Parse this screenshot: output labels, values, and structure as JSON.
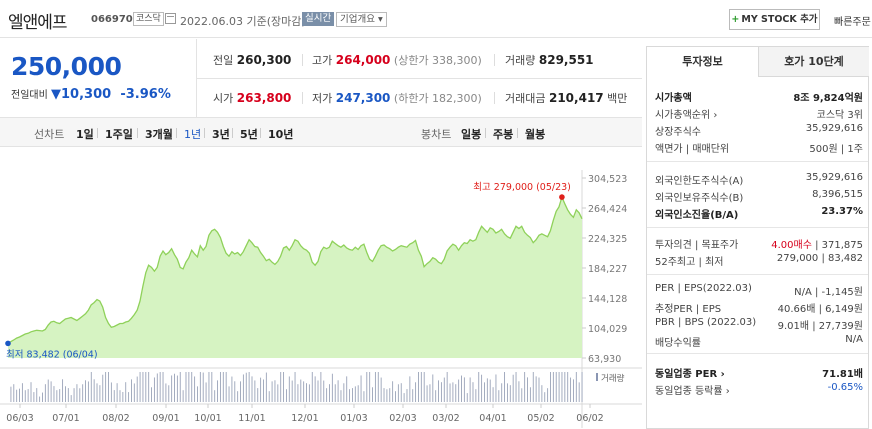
{
  "header": {
    "name": "엘앤에프",
    "code": "066970",
    "market": "코스닥",
    "date": "2022.06.03 기준(장마감)",
    "realtime": "실시간",
    "company_info": "기업개요 ▾",
    "mystock": "MY STOCK 추가",
    "quick_order": "빠른주문"
  },
  "quote": {
    "price": "250,000",
    "change_label": "전일대비",
    "change_arrow": "▼",
    "change_value": "10,300",
    "change_pct": "-3.96%",
    "prev_label": "전일",
    "prev": "260,300",
    "high_label": "고가",
    "high": "264,000",
    "high_limit": "(상한가 338,300)",
    "volume_label": "거래량",
    "volume": "829,551",
    "open_label": "시가",
    "open": "263,800",
    "low_label": "저가",
    "low": "247,300",
    "low_limit": "(하한가 182,300)",
    "amount_label": "거래대금",
    "amount": "210,417",
    "amount_unit": "백만"
  },
  "tabs": {
    "line_chart_label": "선차트",
    "periods": [
      "1일",
      "1주일",
      "3개월",
      "1년",
      "3년",
      "5년",
      "10년"
    ],
    "selected_period": "1년",
    "candle_chart_label": "봉차트",
    "candles": [
      "일봉",
      "주봉",
      "월봉"
    ]
  },
  "chart_data": {
    "type": "area",
    "title": "",
    "xlabel": "",
    "ylabel": "",
    "y_ticks": [
      "304,523",
      "264,424",
      "224,325",
      "184,227",
      "144,128",
      "104,029",
      "63,930"
    ],
    "ylim": [
      63930,
      304523
    ],
    "x_ticks": [
      "06/03",
      "07/01",
      "08/02",
      "09/01",
      "10/01",
      "11/01",
      "12/01",
      "01/03",
      "02/03",
      "03/02",
      "04/01",
      "05/02",
      "06/02"
    ],
    "series": [
      {
        "values": [
          83482,
          86000,
          88000,
          90500,
          92000,
          94000,
          96000,
          97000,
          99000,
          100000,
          101000,
          100500,
          100000,
          102000,
          108000,
          112000,
          113000,
          111000,
          110000,
          113000,
          116000,
          117000,
          118000,
          116000,
          114000,
          117000,
          120000,
          123000,
          128000,
          135000,
          138000,
          142000,
          140000,
          132000,
          118000,
          110000,
          105000,
          106000,
          108000,
          110000,
          110000,
          112000,
          113000,
          117000,
          122000,
          128000,
          140000,
          160000,
          178000,
          188000,
          185000,
          180000,
          185000,
          200000,
          207000,
          202000,
          205000,
          210000,
          202000,
          196000,
          185000,
          183000,
          192000,
          198000,
          208000,
          203000,
          199000,
          214000,
          208000,
          213000,
          228000,
          234000,
          236000,
          232000,
          225000,
          213000,
          204000,
          200000,
          206000,
          203000,
          205000,
          201000,
          206000,
          214000,
          222000,
          218000,
          213000,
          212000,
          205000,
          200000,
          194000,
          196000,
          192000,
          189000,
          193000,
          200000,
          211000,
          213000,
          208000,
          214000,
          222000,
          220000,
          214000,
          210000,
          208000,
          204000,
          192000,
          188000,
          193000,
          206000,
          212000,
          210000,
          212000,
          220000,
          217000,
          214000,
          212000,
          215000,
          211000,
          209000,
          208000,
          212000,
          209000,
          214000,
          216000,
          205000,
          196000,
          193000,
          200000,
          208000,
          214000,
          215000,
          212000,
          210000,
          207000,
          209000,
          212000,
          214000,
          213000,
          212000,
          216000,
          218000,
          221000,
          208000,
          200000,
          186000,
          190000,
          193000,
          198000,
          196000,
          192000,
          190000,
          196000,
          207000,
          212000,
          216000,
          214000,
          208000,
          214000,
          218000,
          217000,
          222000,
          220000,
          222000,
          232000,
          240000,
          236000,
          232000,
          238000,
          236000,
          231000,
          233000,
          236000,
          230000,
          226000,
          224000,
          232000,
          240000,
          237000,
          240000,
          232000,
          228000,
          225000,
          218000,
          222000,
          228000,
          230000,
          228000,
          226000,
          234000,
          248000,
          260000,
          266000,
          279000,
          270000,
          262000,
          256000,
          252000,
          262000,
          258000,
          250000
        ]
      }
    ],
    "volume_label": "거래량",
    "max_label": "최고 279,000 (05/23)",
    "min_label": "최저 83,482 (06/04)",
    "max_color": "#e0201b",
    "min_color": "#1a57c4",
    "line_color": "#8fd15a",
    "fill_color": "#d6f3c2"
  },
  "side": {
    "tab_active": "투자정보",
    "tab_other": "호가 10단계",
    "rows": [
      {
        "k": "시가총액",
        "v": "8조 9,824억원",
        "bold": true
      },
      {
        "k": "시가총액순위 ›",
        "v": "코스닥 3위"
      },
      {
        "k": "상장주식수",
        "v": "35,929,616"
      },
      {
        "k": "액면가 | 매매단위",
        "v": "500원 | 1주"
      },
      {
        "k": "외국인한도주식수(A)",
        "v": "35,929,616"
      },
      {
        "k": "외국인보유주식수(B)",
        "v": "8,396,515"
      },
      {
        "k": "외국인소진율(B/A)",
        "v": "23.37%",
        "bold": true
      },
      {
        "k": "투자의견 | 목표주가",
        "v_up": "4.00매수",
        "v": " | 371,875"
      },
      {
        "k": "52주최고 | 최저",
        "v": "279,000 | 83,482"
      },
      {
        "k": "PER | EPS(2022.03)",
        "v": "N/A | -1,145원"
      },
      {
        "k": "추정PER | EPS",
        "v": "40.66배 | 6,149원"
      },
      {
        "k": "PBR | BPS (2022.03)",
        "v": "9.01배 | 27,739원"
      },
      {
        "k": "배당수익률",
        "v": "N/A"
      },
      {
        "k": "동일업종 PER ›",
        "v": "71.81배",
        "bold": true
      },
      {
        "k": "동일업종 등락률 ›",
        "v_dn": "-0.65%"
      }
    ]
  }
}
